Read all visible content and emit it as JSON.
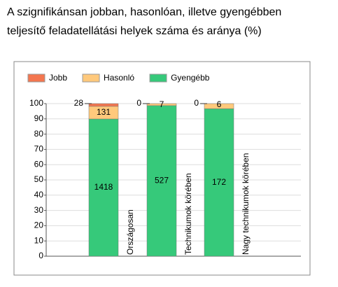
{
  "chart_data": {
    "type": "bar",
    "stacking": "percent",
    "title": [
      "A szignifikánsan jobban, hasonlóan, illetve gyengébben",
      "teljesítő feladatellátási helyek száma és aránya (%)"
    ],
    "categories": [
      "Országosan",
      "Technikumok körében",
      "Nagy technikumok körében"
    ],
    "series": [
      {
        "name": "Jobb",
        "color": "#f4764f",
        "values": [
          28,
          0,
          0
        ]
      },
      {
        "name": "Hasonló",
        "color": "#ffc97c",
        "values": [
          131,
          7,
          6
        ]
      },
      {
        "name": "Gyengébb",
        "color": "#36c97a",
        "values": [
          1418,
          527,
          172
        ]
      }
    ],
    "ylim": [
      0,
      100
    ],
    "yticks": [
      0,
      10,
      20,
      30,
      40,
      50,
      60,
      70,
      80,
      90,
      100
    ],
    "grid": true,
    "legend": "top"
  }
}
